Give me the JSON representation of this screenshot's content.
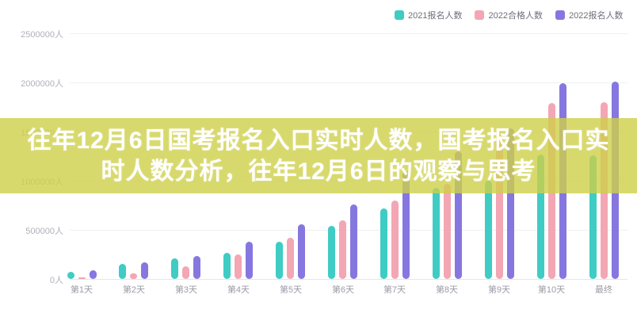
{
  "headline": {
    "line1": "往年12月6日国考报名入口实时人数，国考报名入口实",
    "line2": "时人数分析，往年12月6日的观察与思考",
    "full_text": "往年12月6日国考报名入口实时人数，国考报名入口实时人数分析，往年12月6日的观察与思考",
    "band_color": "#ced048",
    "text_color": "#ffffff"
  },
  "chart_data": {
    "type": "bar",
    "title": "",
    "categories": [
      "第1天",
      "第2天",
      "第3天",
      "第4天",
      "第5天",
      "第6天",
      "第7天",
      "第8天",
      "第9天",
      "第10天",
      "最终"
    ],
    "series": [
      {
        "name": "2021报名人数",
        "color": "#3fccc4",
        "values": [
          70000,
          150000,
          210000,
          270000,
          380000,
          540000,
          720000,
          930000,
          1000000,
          1270000,
          1260000
        ]
      },
      {
        "name": "2022合格人数",
        "color": "#f3a6b4",
        "values": [
          15000,
          60000,
          130000,
          250000,
          420000,
          600000,
          800000,
          970000,
          1470000,
          1790000,
          1800000
        ]
      },
      {
        "name": "2022报名人数",
        "color": "#8677e0",
        "values": [
          90000,
          170000,
          230000,
          380000,
          560000,
          760000,
          1100000,
          1300000,
          1530000,
          1990000,
          2010000
        ]
      }
    ],
    "xlabel": "",
    "ylabel": "",
    "y_unit": "人",
    "y_ticks": [
      "0人",
      "500000人",
      "1000000人",
      "1500000人",
      "2000000人",
      "2500000人"
    ],
    "ylim": [
      0,
      2500000
    ],
    "y_tick_step": 500000,
    "grid": true,
    "legend_position": "top-right",
    "bar_shape": "rounded-pill"
  }
}
